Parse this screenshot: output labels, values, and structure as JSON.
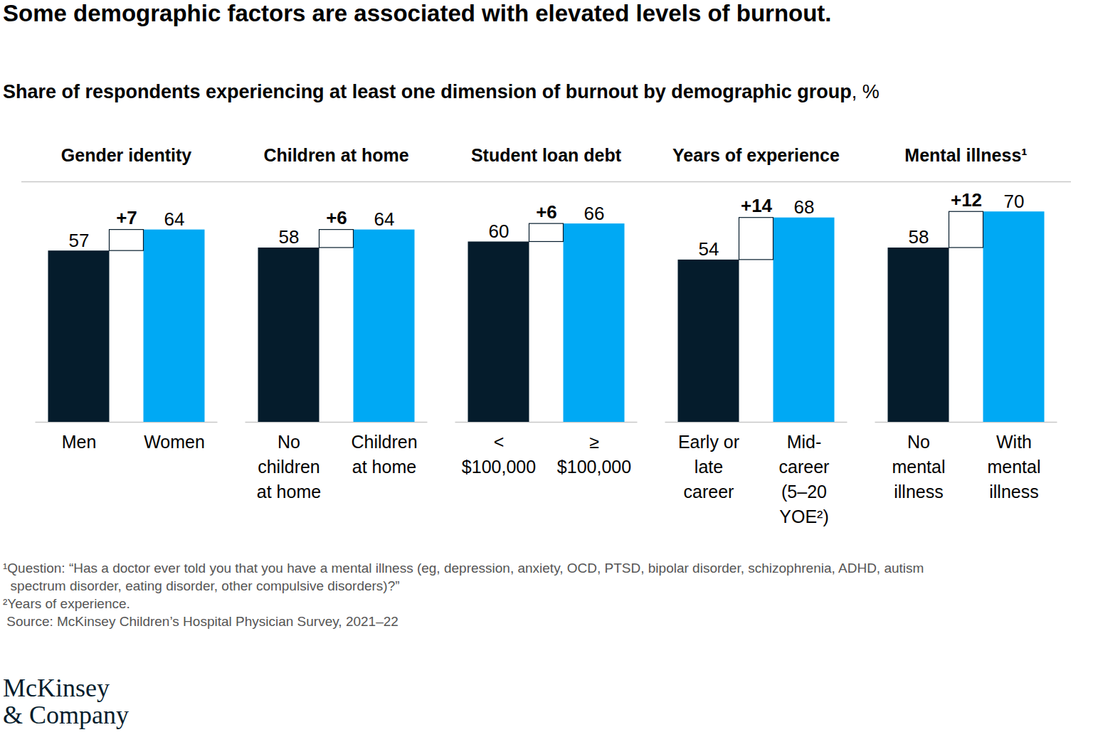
{
  "title": "Some demographic factors are associated with elevated levels of burnout.",
  "subtitle": "Share of respondents experiencing at least one dimension of burnout by demographic group, %",
  "chart_data": [
    {
      "type": "bar",
      "title": "Gender identity",
      "categories": [
        "Men",
        "Women"
      ],
      "values": [
        57,
        64
      ],
      "colors": [
        "#051c2c",
        "#00a9f4"
      ],
      "data_labels": true,
      "annotations": [
        {
          "text": "+7",
          "value": 7
        }
      ],
      "ylim": [
        0,
        80
      ],
      "yticks": [],
      "tick_labels": "x"
    },
    {
      "type": "bar",
      "title": "Children at home",
      "categories": [
        "No\nchildren\nat home",
        "Children\nat home"
      ],
      "values": [
        58,
        64
      ],
      "colors": [
        "#051c2c",
        "#00a9f4"
      ],
      "data_labels": true,
      "annotations": [
        {
          "text": "+6",
          "value": 6
        }
      ],
      "ylim": [
        0,
        80
      ],
      "yticks": [],
      "tick_labels": "x"
    },
    {
      "type": "bar",
      "title": "Student loan debt",
      "categories": [
        "<\n$100,000",
        "≥\n$100,000"
      ],
      "values": [
        60,
        66
      ],
      "colors": [
        "#051c2c",
        "#00a9f4"
      ],
      "data_labels": true,
      "annotations": [
        {
          "text": "+6",
          "value": 6
        }
      ],
      "ylim": [
        0,
        80
      ],
      "yticks": [],
      "tick_labels": "x"
    },
    {
      "type": "bar",
      "title": "Years of experience",
      "categories": [
        "Early or\nlate\ncareer",
        "Mid-\ncareer\n(5–20\nYOE²)"
      ],
      "values": [
        54,
        68
      ],
      "colors": [
        "#051c2c",
        "#00a9f4"
      ],
      "data_labels": true,
      "annotations": [
        {
          "text": "+14",
          "value": 14
        }
      ],
      "ylim": [
        0,
        80
      ],
      "yticks": [],
      "tick_labels": "x"
    },
    {
      "type": "bar",
      "title": "Mental illness¹",
      "categories": [
        "No\nmental\nillness",
        "With\nmental\nillness"
      ],
      "values": [
        58,
        70
      ],
      "colors": [
        "#051c2c",
        "#00a9f4"
      ],
      "data_labels": true,
      "annotations": [
        {
          "text": "+12",
          "value": 12
        }
      ],
      "ylim": [
        0,
        80
      ],
      "yticks": [],
      "tick_labels": "x"
    }
  ],
  "notes": [
    "¹Question: “Has a doctor ever told you that you have a mental illness (eg, depression, anxiety, OCD, PTSD, bipolar disorder, schizophrenia, ADHD, autism\n  spectrum disorder, eating disorder, other compulsive disorders)?”",
    "²Years of experience.",
    " Source: McKinsey Children’s Hospital Physician Survey, 2021–22"
  ],
  "logo": "McKinsey\n& Company"
}
